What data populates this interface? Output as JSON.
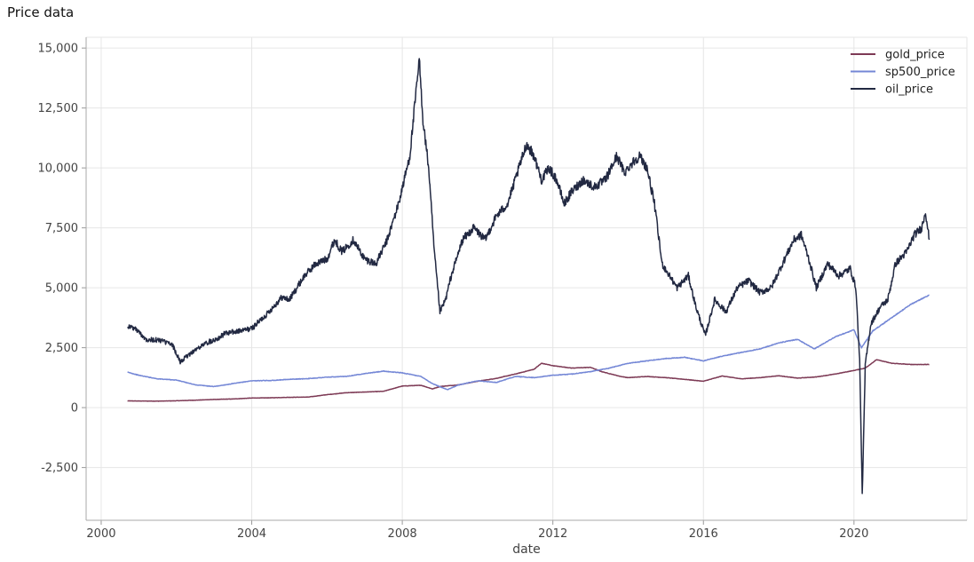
{
  "chart_data": {
    "type": "line",
    "title": "Price data",
    "xlabel": "date",
    "ylabel": "",
    "xlim": [
      1999.6,
      2023.0
    ],
    "ylim": [
      -4700,
      15450
    ],
    "x_ticks": [
      2000,
      2004,
      2008,
      2012,
      2016,
      2020
    ],
    "x_tick_labels": [
      "2000",
      "2004",
      "2008",
      "2012",
      "2016",
      "2020"
    ],
    "y_ticks": [
      -2500,
      0,
      2500,
      5000,
      7500,
      10000,
      12500,
      15000
    ],
    "y_tick_labels": [
      "-2,500",
      "0",
      "2,500",
      "5,000",
      "7,500",
      "10,000",
      "12,500",
      "15,000"
    ],
    "grid": true,
    "legend_position": "top-right",
    "series": [
      {
        "name": "gold_price",
        "color": "#7d3a55",
        "x": [
          2000.7,
          2001.0,
          2001.5,
          2002.0,
          2002.5,
          2003.0,
          2003.5,
          2004.0,
          2004.5,
          2005.0,
          2005.5,
          2006.0,
          2006.5,
          2007.0,
          2007.5,
          2008.0,
          2008.5,
          2008.8,
          2009.0,
          2009.5,
          2010.0,
          2010.5,
          2011.0,
          2011.5,
          2011.7,
          2012.0,
          2012.5,
          2013.0,
          2013.3,
          2013.8,
          2014.0,
          2014.5,
          2015.0,
          2015.5,
          2016.0,
          2016.5,
          2017.0,
          2017.5,
          2018.0,
          2018.5,
          2019.0,
          2019.5,
          2020.0,
          2020.3,
          2020.6,
          2021.0,
          2021.5,
          2022.0
        ],
        "y": [
          280,
          275,
          270,
          285,
          310,
          340,
          360,
          400,
          410,
          430,
          440,
          540,
          620,
          650,
          680,
          900,
          930,
          780,
          880,
          950,
          1100,
          1220,
          1400,
          1600,
          1850,
          1750,
          1650,
          1680,
          1500,
          1300,
          1250,
          1300,
          1250,
          1180,
          1100,
          1320,
          1200,
          1250,
          1330,
          1230,
          1280,
          1400,
          1550,
          1650,
          2000,
          1850,
          1800,
          1800
        ]
      },
      {
        "name": "sp500_price",
        "color": "#7487d6",
        "x": [
          2000.7,
          2001.0,
          2001.5,
          2002.0,
          2002.5,
          2003.0,
          2003.5,
          2004.0,
          2004.5,
          2005.0,
          2005.5,
          2006.0,
          2006.5,
          2007.0,
          2007.5,
          2008.0,
          2008.5,
          2008.8,
          2009.2,
          2009.5,
          2010.0,
          2010.5,
          2011.0,
          2011.5,
          2012.0,
          2012.5,
          2013.0,
          2013.5,
          2014.0,
          2014.5,
          2015.0,
          2015.5,
          2016.0,
          2016.5,
          2017.0,
          2017.5,
          2018.0,
          2018.5,
          2018.95,
          2019.5,
          2020.0,
          2020.2,
          2020.5,
          2021.0,
          2021.5,
          2022.0
        ],
        "y": [
          1480,
          1350,
          1200,
          1150,
          950,
          880,
          1000,
          1120,
          1130,
          1180,
          1210,
          1270,
          1300,
          1420,
          1520,
          1450,
          1300,
          1000,
          750,
          950,
          1120,
          1050,
          1300,
          1250,
          1350,
          1400,
          1500,
          1650,
          1850,
          1950,
          2050,
          2100,
          1950,
          2150,
          2300,
          2450,
          2700,
          2850,
          2450,
          2950,
          3250,
          2500,
          3200,
          3750,
          4300,
          4700
        ]
      },
      {
        "name": "oil_price",
        "color": "#222942",
        "x": [
          2000.7,
          2000.9,
          2001.2,
          2001.6,
          2001.9,
          2002.1,
          2002.4,
          2002.8,
          2003.1,
          2003.3,
          2003.7,
          2004.0,
          2004.4,
          2004.8,
          2005.0,
          2005.4,
          2005.7,
          2006.0,
          2006.2,
          2006.4,
          2006.7,
          2007.0,
          2007.3,
          2007.6,
          2007.9,
          2008.2,
          2008.45,
          2008.55,
          2008.7,
          2008.85,
          2009.0,
          2009.15,
          2009.3,
          2009.6,
          2009.9,
          2010.2,
          2010.5,
          2010.8,
          2011.0,
          2011.3,
          2011.5,
          2011.7,
          2011.9,
          2012.1,
          2012.3,
          2012.5,
          2012.8,
          2013.1,
          2013.4,
          2013.7,
          2013.9,
          2014.1,
          2014.3,
          2014.5,
          2014.7,
          2014.9,
          2015.1,
          2015.3,
          2015.6,
          2015.8,
          2016.05,
          2016.3,
          2016.6,
          2016.9,
          2017.2,
          2017.5,
          2017.8,
          2018.1,
          2018.4,
          2018.6,
          2018.8,
          2019.0,
          2019.3,
          2019.6,
          2019.9,
          2020.05,
          2020.15,
          2020.22,
          2020.3,
          2020.45,
          2020.7,
          2020.9,
          2021.1,
          2021.4,
          2021.6,
          2021.8,
          2021.9,
          2022.0
        ],
        "y": [
          3400,
          3300,
          2850,
          2800,
          2600,
          1900,
          2300,
          2700,
          2900,
          3100,
          3200,
          3300,
          3900,
          4600,
          4500,
          5500,
          6000,
          6200,
          7000,
          6500,
          7000,
          6200,
          6000,
          7000,
          8500,
          10500,
          14500,
          12000,
          10000,
          6500,
          4000,
          4500,
          5500,
          7000,
          7500,
          7000,
          8000,
          8500,
          9500,
          11000,
          10500,
          9500,
          10000,
          9500,
          8500,
          9000,
          9500,
          9200,
          9500,
          10500,
          9800,
          10200,
          10500,
          10000,
          8500,
          6000,
          5500,
          5000,
          5500,
          4200,
          3000,
          4500,
          4000,
          5000,
          5300,
          4800,
          5000,
          6000,
          7000,
          7200,
          6200,
          5000,
          6000,
          5500,
          5800,
          5000,
          2000,
          -3700,
          1800,
          3500,
          4200,
          4500,
          6000,
          6500,
          7200,
          7500,
          8200,
          7000
        ]
      }
    ]
  }
}
